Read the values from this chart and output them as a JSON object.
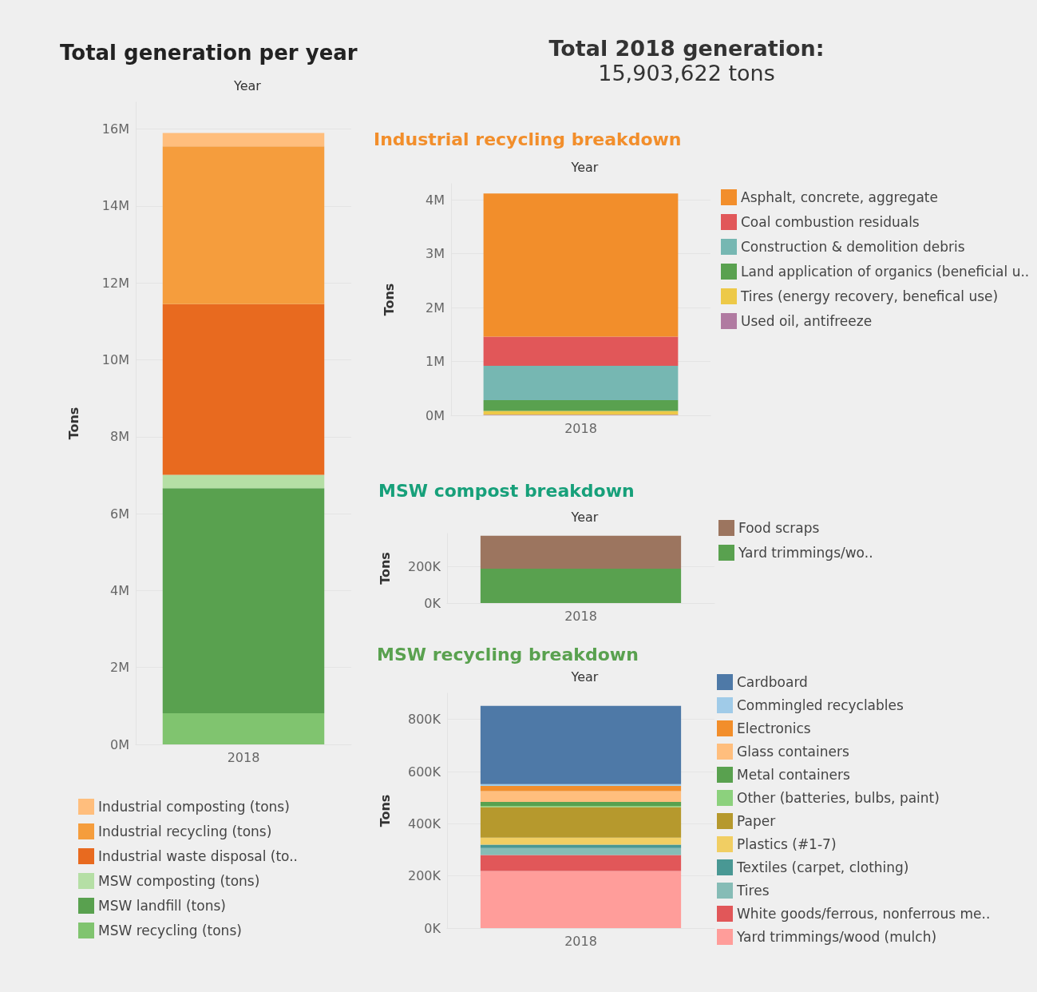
{
  "chart_data": [
    {
      "type": "bar",
      "title": "Total generation per year",
      "xlabel": "Year",
      "ylabel": "Tons",
      "categories": [
        "2018"
      ],
      "stacked": true,
      "grid": "y",
      "legend": "bottom left",
      "ylim": [
        0,
        16700000
      ],
      "yticks": [
        {
          "value": 0,
          "label": "0M"
        },
        {
          "value": 2000000,
          "label": "2M"
        },
        {
          "value": 4000000,
          "label": "4M"
        },
        {
          "value": 6000000,
          "label": "6M"
        },
        {
          "value": 8000000,
          "label": "8M"
        },
        {
          "value": 10000000,
          "label": "10M"
        },
        {
          "value": 12000000,
          "label": "12M"
        },
        {
          "value": 14000000,
          "label": "14M"
        },
        {
          "value": 16000000,
          "label": "16M"
        }
      ],
      "series": [
        {
          "name": "MSW recycling (tons)",
          "color": "#80c46f",
          "values": [
            810000
          ]
        },
        {
          "name": "MSW landfill (tons)",
          "color": "#59a14f",
          "values": [
            5850000
          ]
        },
        {
          "name": "MSW composting (tons)",
          "color": "#b5dfa5",
          "values": [
            350000
          ]
        },
        {
          "name": "Industrial waste disposal (to..",
          "color": "#e86a1f",
          "values": [
            4440000
          ]
        },
        {
          "name": "Industrial recycling (tons)",
          "color": "#f59d3d",
          "values": [
            4100000
          ]
        },
        {
          "name": "Industrial composting (tons)",
          "color": "#ffbe7d",
          "values": [
            350000
          ]
        }
      ]
    },
    {
      "type": "other",
      "title": "Total 2018 generation:",
      "subtitle": "15,903,622 tons"
    },
    {
      "type": "bar",
      "title": "Industrial recycling breakdown",
      "xlabel": "Year",
      "ylabel": "Tons",
      "categories": [
        "2018"
      ],
      "stacked": true,
      "grid": "y",
      "legend": "right",
      "ylim": [
        0,
        4300000
      ],
      "yticks": [
        {
          "value": 0,
          "label": "0M"
        },
        {
          "value": 1000000,
          "label": "1M"
        },
        {
          "value": 2000000,
          "label": "2M"
        },
        {
          "value": 3000000,
          "label": "3M"
        },
        {
          "value": 4000000,
          "label": "4M"
        }
      ],
      "series": [
        {
          "name": "Used oil, antifreeze",
          "color": "#b07aa1",
          "values": [
            10000
          ]
        },
        {
          "name": "Tires (energy recovery, benefical use)",
          "color": "#edc948",
          "values": [
            70000
          ]
        },
        {
          "name": "Land application of organics (beneficial u..",
          "color": "#59a14f",
          "values": [
            200000
          ]
        },
        {
          "name": "Construction & demolition debris",
          "color": "#76b7b2",
          "values": [
            640000
          ]
        },
        {
          "name": "Coal combustion residuals",
          "color": "#e15759",
          "values": [
            540000
          ]
        },
        {
          "name": "Asphalt, concrete, aggregate",
          "color": "#f28e2b",
          "values": [
            2660000
          ]
        }
      ]
    },
    {
      "type": "bar",
      "title": "MSW compost breakdown",
      "xlabel": "Year",
      "ylabel": "Tons",
      "categories": [
        "2018"
      ],
      "stacked": true,
      "grid": "y",
      "legend": "right",
      "ylim": [
        0,
        380000
      ],
      "yticks": [
        {
          "value": 0,
          "label": "0K"
        },
        {
          "value": 200000,
          "label": "200K"
        }
      ],
      "series": [
        {
          "name": "Yard trimmings/wo..",
          "color": "#59a14f",
          "values": [
            188000
          ]
        },
        {
          "name": "Food scraps",
          "color": "#9c755f",
          "values": [
            180000
          ]
        }
      ]
    },
    {
      "type": "bar",
      "title": "MSW recycling breakdown",
      "xlabel": "Year",
      "ylabel": "Tons",
      "categories": [
        "2018"
      ],
      "stacked": true,
      "grid": "y",
      "legend": "right",
      "ylim": [
        0,
        900000
      ],
      "yticks": [
        {
          "value": 0,
          "label": "0K"
        },
        {
          "value": 200000,
          "label": "200K"
        },
        {
          "value": 400000,
          "label": "400K"
        },
        {
          "value": 600000,
          "label": "600K"
        },
        {
          "value": 800000,
          "label": "800K"
        }
      ],
      "series": [
        {
          "name": "Yard trimmings/wood (mulch)",
          "color": "#ff9d9a",
          "values": [
            219000
          ]
        },
        {
          "name": "White goods/ferrous, nonferrous me..",
          "color": "#e15759",
          "values": [
            61000
          ]
        },
        {
          "name": "Tires",
          "color": "#86bcb6",
          "values": [
            27000
          ]
        },
        {
          "name": "Textiles (carpet, clothing)",
          "color": "#499894",
          "values": [
            13000
          ]
        },
        {
          "name": "Plastics (#1-7)",
          "color": "#f1ce63",
          "values": [
            27000
          ]
        },
        {
          "name": "Paper",
          "color": "#b6992d",
          "values": [
            117000
          ]
        },
        {
          "name": "Other (batteries, bulbs, paint)",
          "color": "#8cd17d",
          "values": [
            4000
          ]
        },
        {
          "name": "Metal containers",
          "color": "#59a14f",
          "values": [
            16000
          ]
        },
        {
          "name": "Glass containers",
          "color": "#ffbe7d",
          "values": [
            41000
          ]
        },
        {
          "name": "Electronics",
          "color": "#f28e2b",
          "values": [
            20000
          ]
        },
        {
          "name": "Commingled recyclables",
          "color": "#a0cbe8",
          "values": [
            7000
          ]
        },
        {
          "name": "Cardboard",
          "color": "#4e79a7",
          "values": [
            300000
          ]
        }
      ]
    }
  ]
}
